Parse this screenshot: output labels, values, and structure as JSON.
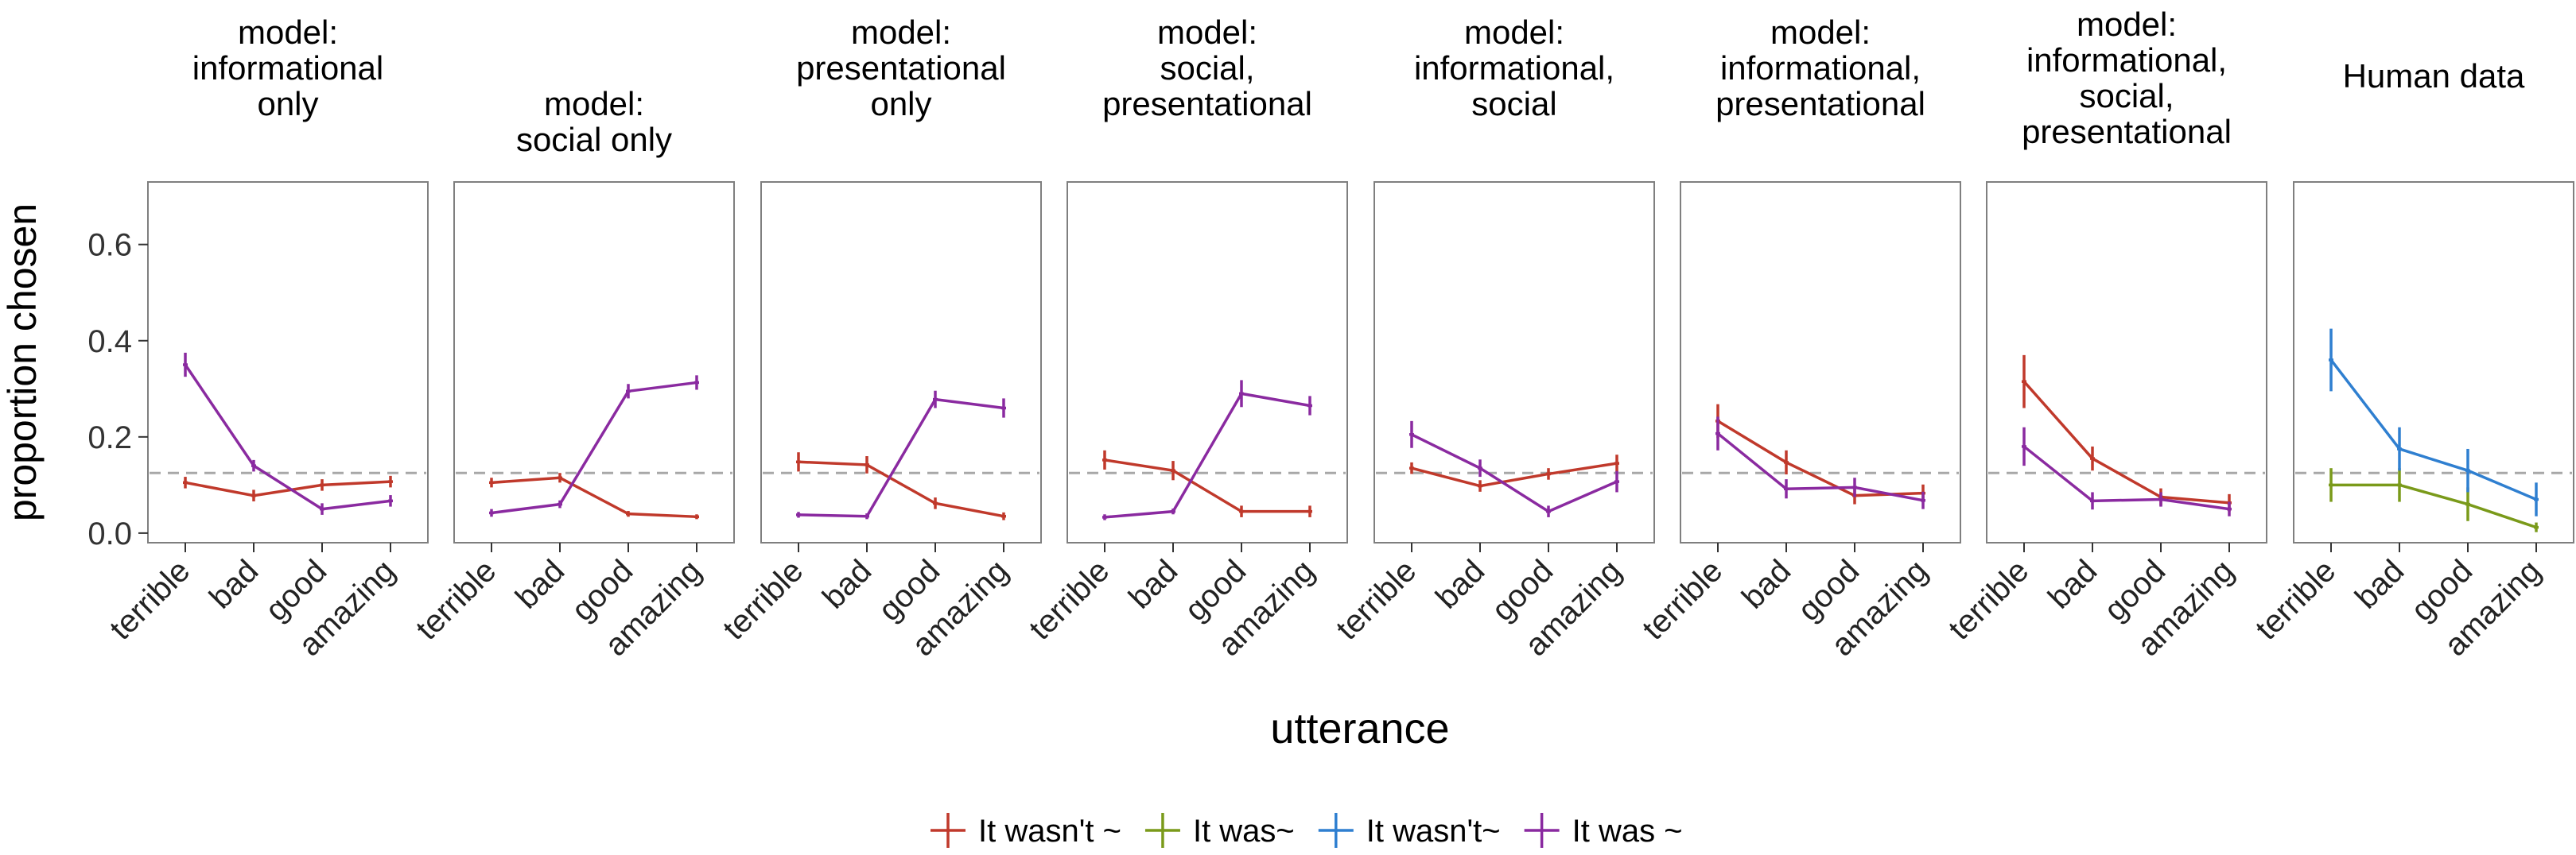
{
  "chart_data": {
    "type": "line",
    "ylabel": "proportion chosen",
    "xlabel": "utterance",
    "categories": [
      "terrible",
      "bad",
      "good",
      "amazing"
    ],
    "ylim": [
      -0.02,
      0.73
    ],
    "yticks": [
      0.0,
      0.2,
      0.4,
      0.6
    ],
    "ytick_labels": [
      "0.0",
      "0.2",
      "0.4",
      "0.6"
    ],
    "reference_line": 0.125,
    "legend_position": "bottom",
    "legend": [
      {
        "label": "It wasn't ~",
        "color": "#c0392b"
      },
      {
        "label": "It was~",
        "color": "#7a9a1a"
      },
      {
        "label": "It wasn't~",
        "color": "#2f7fd0"
      },
      {
        "label": "It was ~",
        "color": "#8a2aa0"
      }
    ],
    "panels": [
      {
        "title": [
          "model:",
          "informational",
          "only"
        ],
        "series": [
          {
            "legend_index": 0,
            "values": [
              0.105,
              0.078,
              0.1,
              0.107
            ],
            "err": [
              0.012,
              0.012,
              0.012,
              0.012
            ]
          },
          {
            "legend_index": 3,
            "values": [
              0.35,
              0.14,
              0.05,
              0.067
            ],
            "err": [
              0.025,
              0.012,
              0.012,
              0.012
            ]
          }
        ]
      },
      {
        "title": [
          "model:",
          "social only"
        ],
        "series": [
          {
            "legend_index": 0,
            "values": [
              0.105,
              0.115,
              0.04,
              0.034
            ],
            "err": [
              0.01,
              0.01,
              0.006,
              0.005
            ]
          },
          {
            "legend_index": 3,
            "values": [
              0.042,
              0.06,
              0.295,
              0.313
            ],
            "err": [
              0.008,
              0.008,
              0.015,
              0.015
            ]
          }
        ]
      },
      {
        "title": [
          "model:",
          "presentational",
          "only"
        ],
        "series": [
          {
            "legend_index": 0,
            "values": [
              0.148,
              0.142,
              0.062,
              0.035
            ],
            "err": [
              0.02,
              0.018,
              0.012,
              0.008
            ]
          },
          {
            "legend_index": 3,
            "values": [
              0.038,
              0.035,
              0.278,
              0.26
            ],
            "err": [
              0.006,
              0.006,
              0.018,
              0.02
            ]
          }
        ]
      },
      {
        "title": [
          "model:",
          "social,",
          "presentational"
        ],
        "series": [
          {
            "legend_index": 0,
            "values": [
              0.152,
              0.13,
              0.045,
              0.045
            ],
            "err": [
              0.02,
              0.02,
              0.012,
              0.012
            ]
          },
          {
            "legend_index": 3,
            "values": [
              0.033,
              0.045,
              0.29,
              0.265
            ],
            "err": [
              0.006,
              0.006,
              0.028,
              0.02
            ]
          }
        ]
      },
      {
        "title": [
          "model:",
          "informational,",
          "social"
        ],
        "series": [
          {
            "legend_index": 0,
            "values": [
              0.135,
              0.098,
              0.123,
              0.145
            ],
            "err": [
              0.012,
              0.012,
              0.012,
              0.018
            ]
          },
          {
            "legend_index": 3,
            "values": [
              0.205,
              0.135,
              0.045,
              0.107
            ],
            "err": [
              0.028,
              0.018,
              0.012,
              0.022
            ]
          }
        ]
      },
      {
        "title": [
          "model:",
          "informational,",
          "presentational"
        ],
        "series": [
          {
            "legend_index": 0,
            "values": [
              0.233,
              0.147,
              0.078,
              0.083
            ],
            "err": [
              0.035,
              0.025,
              0.018,
              0.018
            ]
          },
          {
            "legend_index": 3,
            "values": [
              0.207,
              0.092,
              0.095,
              0.068
            ],
            "err": [
              0.035,
              0.02,
              0.02,
              0.018
            ]
          }
        ]
      },
      {
        "title": [
          "model:",
          "informational,",
          "social,",
          "presentational"
        ],
        "series": [
          {
            "legend_index": 0,
            "values": [
              0.315,
              0.155,
              0.075,
              0.063
            ],
            "err": [
              0.055,
              0.025,
              0.018,
              0.018
            ]
          },
          {
            "legend_index": 3,
            "values": [
              0.18,
              0.067,
              0.07,
              0.05
            ],
            "err": [
              0.04,
              0.018,
              0.015,
              0.015
            ]
          }
        ]
      },
      {
        "title": [
          "Human data"
        ],
        "series": [
          {
            "legend_index": 1,
            "values": [
              0.1,
              0.1,
              0.06,
              0.012
            ],
            "err": [
              0.035,
              0.035,
              0.035,
              0.01
            ]
          },
          {
            "legend_index": 2,
            "values": [
              0.36,
              0.175,
              0.13,
              0.07
            ],
            "err": [
              0.065,
              0.045,
              0.045,
              0.035
            ]
          }
        ]
      }
    ]
  }
}
